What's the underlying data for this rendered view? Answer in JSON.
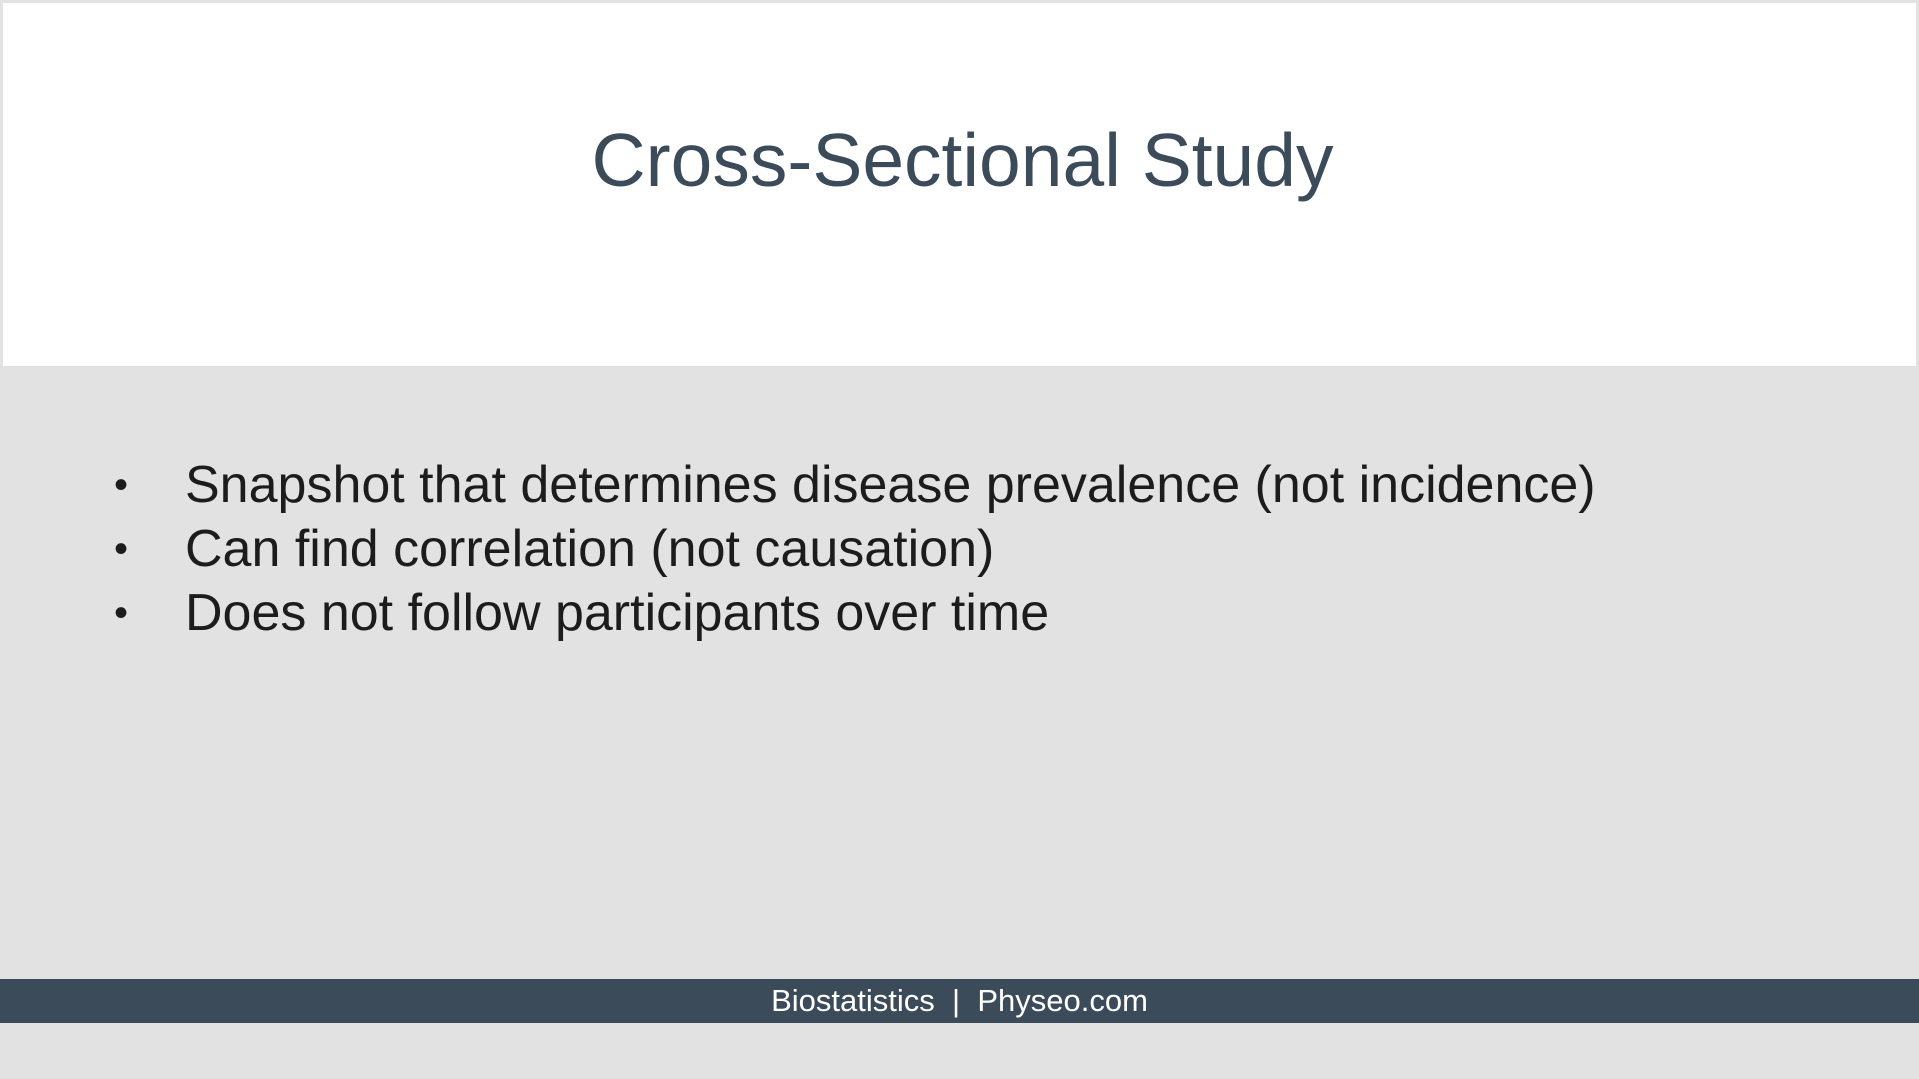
{
  "slide": {
    "title": "Cross-Sectional Study",
    "bullets": [
      "Snapshot that determines disease prevalence (not incidence)",
      "Can find correlation (not causation)",
      "Does not follow participants over time"
    ],
    "bullet_glyph": "•",
    "footer": {
      "left": "Biostatistics",
      "separator": "|",
      "right": "Physeo.com"
    }
  },
  "colors": {
    "background": "#e2e2e2",
    "title_panel": "#ffffff",
    "title_text": "#3c4b59",
    "body_text": "#1c1c1c",
    "footer_bar": "#3c4b59",
    "footer_text": "#ffffff"
  }
}
